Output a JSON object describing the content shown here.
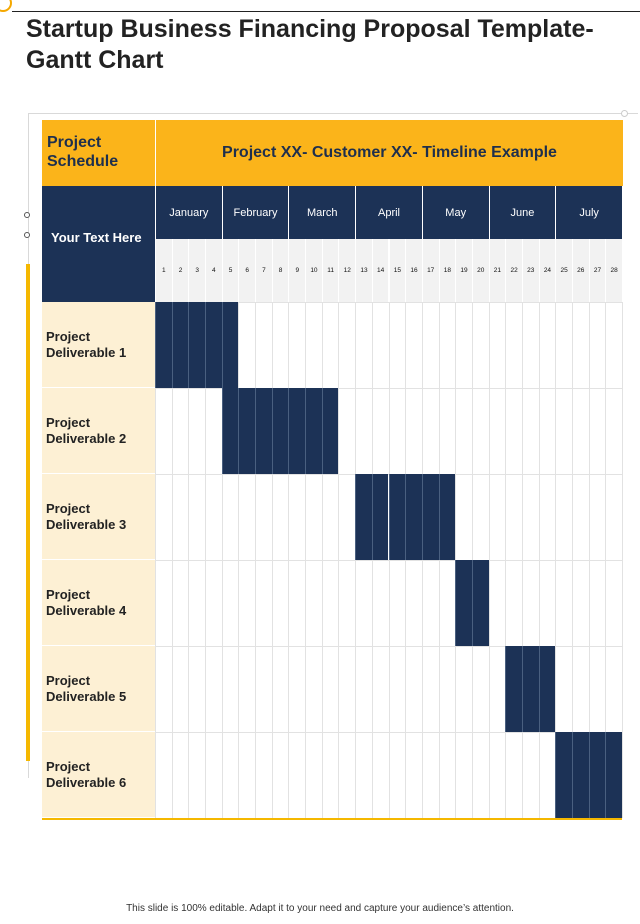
{
  "header": {
    "title_line1": "Startup Business Financing Proposal Template-",
    "title_line2": "Gantt Chart"
  },
  "table": {
    "corner_label": "Project Schedule",
    "banner": "Project XX- Customer XX- Timeline Example",
    "left_placeholder": "Your Text Here",
    "months": [
      "January",
      "February",
      "March",
      "April",
      "May",
      "June",
      "July"
    ],
    "days": [
      "1",
      "2",
      "3",
      "4",
      "5",
      "6",
      "7",
      "8",
      "9",
      "10",
      "11",
      "12",
      "13",
      "14",
      "15",
      "16",
      "17",
      "18",
      "19",
      "20",
      "21",
      "22",
      "23",
      "24",
      "25",
      "26",
      "27",
      "28"
    ],
    "deliverables": [
      {
        "label": "Project Deliverable 1",
        "start_week": 1,
        "end_week": 5
      },
      {
        "label": "Project Deliverable 2",
        "start_week": 5,
        "end_week": 11
      },
      {
        "label": "Project Deliverable 3",
        "start_week": 13,
        "end_week": 18
      },
      {
        "label": "Project Deliverable 4",
        "start_week": 19,
        "end_week": 20
      },
      {
        "label": "Project Deliverable 5",
        "start_week": 22,
        "end_week": 24
      },
      {
        "label": "Project Deliverable 6",
        "start_week": 25,
        "end_week": 28
      }
    ]
  },
  "footer": {
    "text": "This slide is 100% editable. Adapt it to your need and capture your audience’s attention."
  },
  "colors": {
    "accent_yellow": "#fbb41a",
    "navy": "#1c3256",
    "label_bg": "#fdf0d4"
  }
}
